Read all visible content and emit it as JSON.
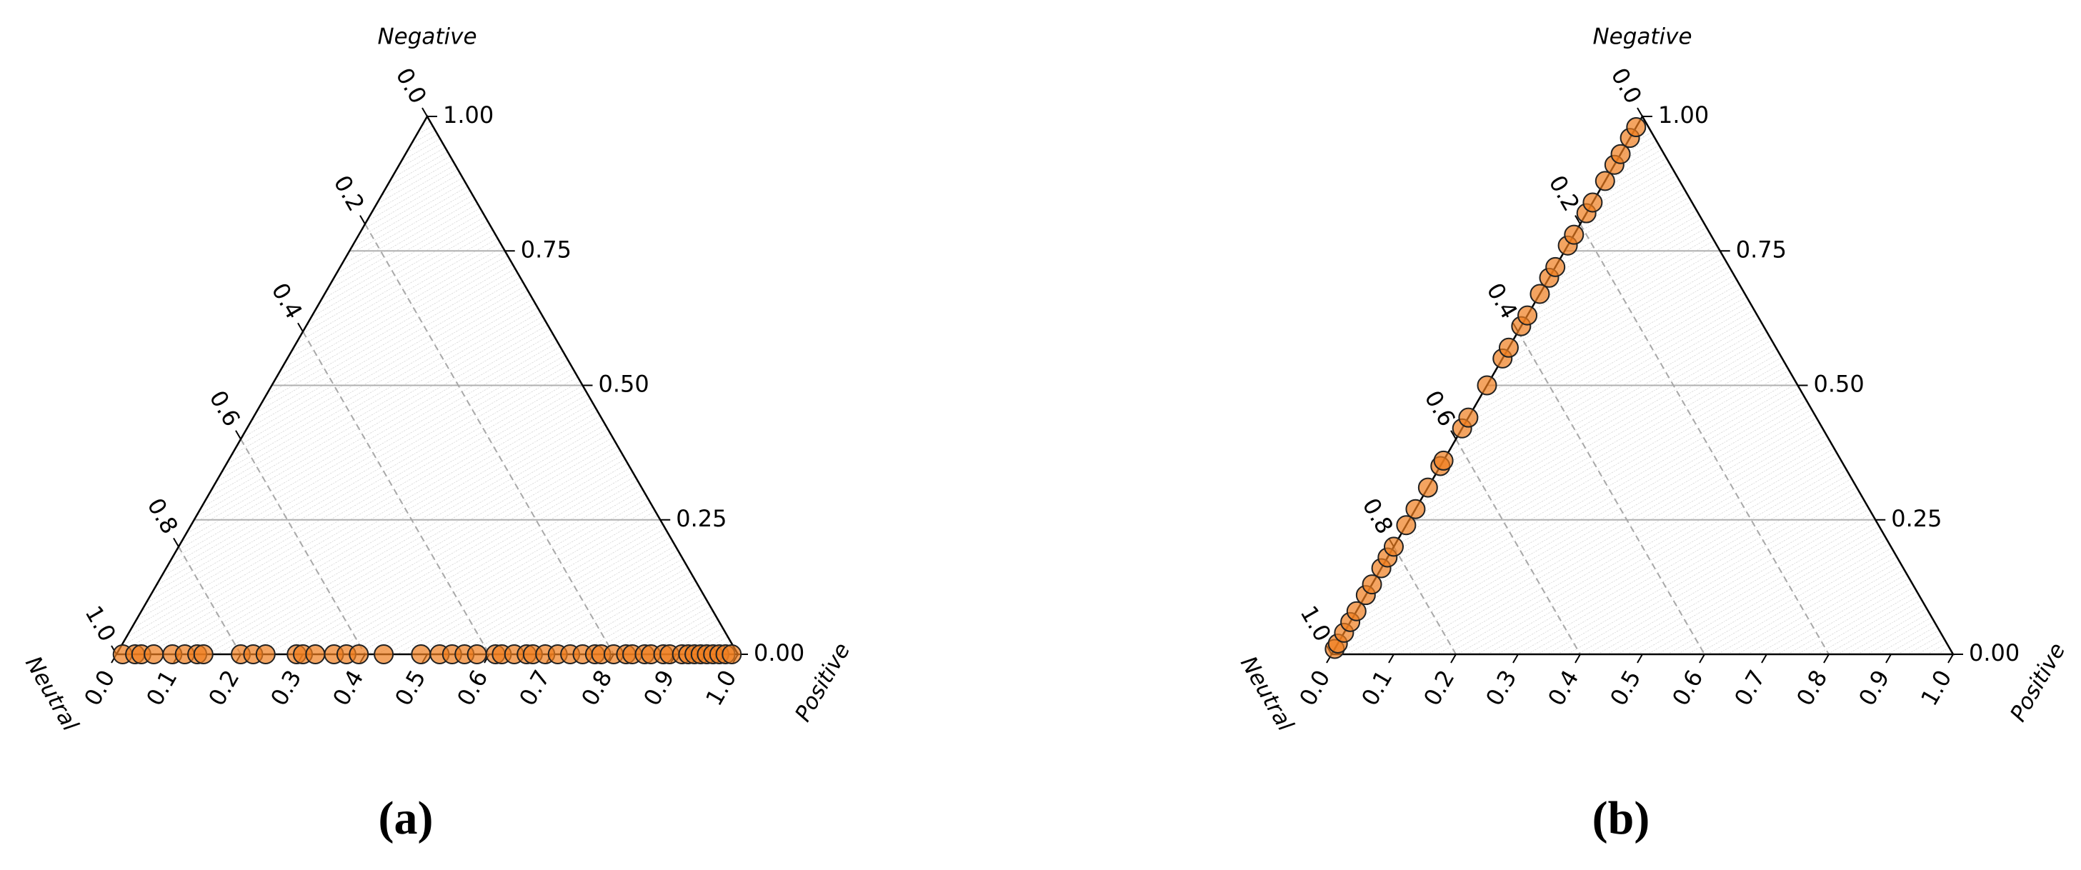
{
  "chart_data": [
    {
      "type": "ternary",
      "panel_label": "(a)",
      "top_label": "Negative",
      "left_label": "Neutral",
      "right_label": "Positive",
      "color": "#ef7d1e",
      "grid": true,
      "negative_lim": [
        0,
        1
      ],
      "neutral_lim": [
        0,
        1
      ],
      "positive_lim": [
        0,
        1
      ],
      "negative_ticks": [
        {
          "value": 0,
          "label": "0.00"
        },
        {
          "value": 0.25,
          "label": "0.25"
        },
        {
          "value": 0.5,
          "label": "0.50"
        },
        {
          "value": 0.75,
          "label": "0.75"
        },
        {
          "value": 1,
          "label": "1.00"
        }
      ],
      "neutral_ticks": [
        {
          "value": 0,
          "label": "0.0"
        },
        {
          "value": 0.2,
          "label": "0.2"
        },
        {
          "value": 0.4,
          "label": "0.4"
        },
        {
          "value": 0.6,
          "label": "0.6"
        },
        {
          "value": 0.8,
          "label": "0.8"
        },
        {
          "value": 1,
          "label": "1.0"
        }
      ],
      "positive_ticks": [
        {
          "value": 0,
          "label": "0.0"
        },
        0.1,
        0.2,
        0.3,
        0.4,
        0.5,
        0.6,
        0.7,
        0.8,
        0.9,
        {
          "value": 1,
          "label": "1.0"
        }
      ],
      "positive": [
        0.01,
        0.03,
        0.04,
        0.06,
        0.09,
        0.11,
        0.13,
        0.14,
        0.2,
        0.22,
        0.24,
        0.29,
        0.3,
        0.32,
        0.35,
        0.37,
        0.39,
        0.43,
        0.49,
        0.52,
        0.54,
        0.56,
        0.58,
        0.61,
        0.62,
        0.64,
        0.66,
        0.67,
        0.69,
        0.71,
        0.73,
        0.75,
        0.77,
        0.78,
        0.8,
        0.82,
        0.83,
        0.85,
        0.86,
        0.88,
        0.89,
        0.91,
        0.92,
        0.93,
        0.94,
        0.95,
        0.96,
        0.97,
        0.98,
        0.99
      ],
      "negative": [
        0,
        0,
        0,
        0,
        0,
        0,
        0,
        0,
        0,
        0,
        0,
        0,
        0,
        0,
        0,
        0,
        0,
        0,
        0,
        0,
        0,
        0,
        0,
        0,
        0,
        0,
        0,
        0,
        0,
        0,
        0,
        0,
        0,
        0,
        0,
        0,
        0,
        0,
        0,
        0,
        0,
        0,
        0,
        0,
        0,
        0,
        0,
        0,
        0,
        0
      ]
    },
    {
      "type": "ternary",
      "panel_label": "(b)",
      "top_label": "Negative",
      "left_label": "Neutral",
      "right_label": "Positive",
      "color": "#ef7d1e",
      "grid": true,
      "negative_lim": [
        0,
        1
      ],
      "neutral_lim": [
        0,
        1
      ],
      "positive_lim": [
        0,
        1
      ],
      "negative_ticks": [
        {
          "value": 0,
          "label": "0.00"
        },
        {
          "value": 0.25,
          "label": "0.25"
        },
        {
          "value": 0.5,
          "label": "0.50"
        },
        {
          "value": 0.75,
          "label": "0.75"
        },
        {
          "value": 1,
          "label": "1.00"
        }
      ],
      "neutral_ticks": [
        {
          "value": 0,
          "label": "0.0"
        },
        {
          "value": 0.2,
          "label": "0.2"
        },
        {
          "value": 0.4,
          "label": "0.4"
        },
        {
          "value": 0.6,
          "label": "0.6"
        },
        {
          "value": 0.8,
          "label": "0.8"
        },
        {
          "value": 1,
          "label": "1.0"
        }
      ],
      "positive_ticks": [
        {
          "value": 0,
          "label": "0.0"
        },
        0.1,
        0.2,
        0.3,
        0.4,
        0.5,
        0.6,
        0.7,
        0.8,
        0.9,
        {
          "value": 1,
          "label": "1.0"
        }
      ],
      "positive": [
        0,
        0,
        0,
        0,
        0,
        0,
        0,
        0,
        0,
        0,
        0,
        0,
        0,
        0,
        0,
        0,
        0,
        0,
        0,
        0,
        0,
        0,
        0,
        0,
        0,
        0,
        0,
        0,
        0,
        0,
        0,
        0,
        0,
        0
      ],
      "negative": [
        0.01,
        0.02,
        0.04,
        0.06,
        0.08,
        0.11,
        0.13,
        0.16,
        0.18,
        0.2,
        0.24,
        0.27,
        0.31,
        0.35,
        0.36,
        0.42,
        0.44,
        0.5,
        0.55,
        0.57,
        0.61,
        0.63,
        0.67,
        0.7,
        0.72,
        0.76,
        0.78,
        0.82,
        0.84,
        0.88,
        0.91,
        0.93,
        0.96,
        0.98
      ]
    }
  ]
}
